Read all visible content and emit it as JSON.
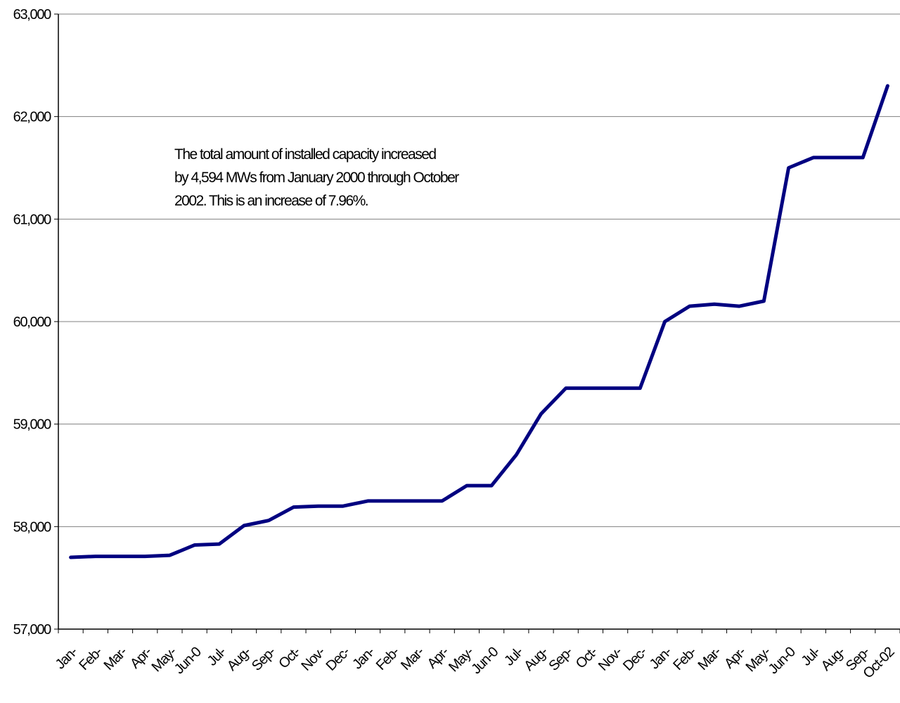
{
  "chart_data": {
    "type": "line",
    "annotation": [
      "The total amount of installed capacity increased",
      "by  4,594 MWs from January 2000 through October",
      "2002. This is an increase of 7.96%."
    ],
    "categories": [
      "Jan-",
      "Feb-",
      "Mar-",
      "Apr-",
      "May-",
      "Jun-0",
      "Jul-",
      "Aug-",
      "Sep-",
      "Oct-",
      "Nov-",
      "Dec-",
      "Jan-",
      "Feb-",
      "Mar-",
      "Apr-",
      "May-",
      "Jun-0",
      "Jul-",
      "Aug-",
      "Sep-",
      "Oct-",
      "Nov-",
      "Dec-",
      "Jan-",
      "Feb-",
      "Mar-",
      "Apr-",
      "May-",
      "Jun-0",
      "Jul-",
      "Aug-",
      "Sep-",
      "Oct-02"
    ],
    "series": [
      {
        "color": "#000080",
        "values": [
          57700,
          57710,
          57710,
          57710,
          57720,
          57820,
          57830,
          58010,
          58060,
          58190,
          58200,
          58200,
          58250,
          58250,
          58250,
          58250,
          58400,
          58400,
          58700,
          59100,
          59350,
          59350,
          59350,
          59350,
          60000,
          60150,
          60170,
          60150,
          60200,
          61500,
          61600,
          61600,
          61600,
          62300
        ]
      }
    ],
    "ylim": [
      57000,
      63000
    ],
    "yticks": [
      {
        "value": 57000,
        "label": "57,000"
      },
      {
        "value": 58000,
        "label": "58,000"
      },
      {
        "value": 59000,
        "label": "59,000"
      },
      {
        "value": 60000,
        "label": "60,000"
      },
      {
        "value": 61000,
        "label": "61,000"
      },
      {
        "value": 62000,
        "label": "62,000"
      },
      {
        "value": 63000,
        "label": "63,000"
      }
    ],
    "grid": true
  }
}
